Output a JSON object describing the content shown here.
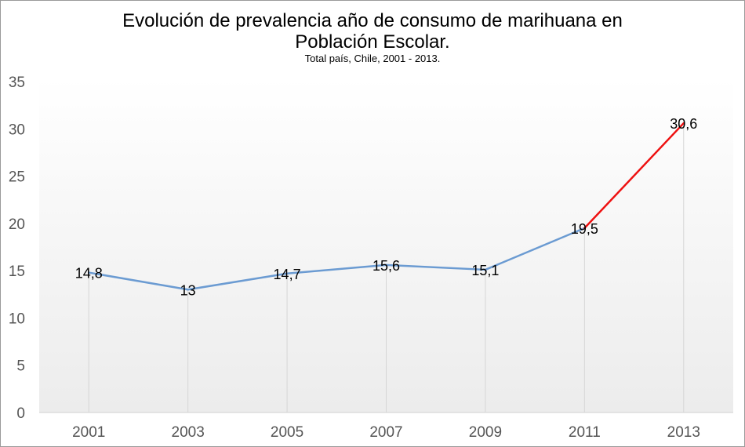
{
  "chart_data": {
    "type": "line",
    "title_line1": "Evolución de prevalencia año de consumo de marihuana en",
    "title_line2": "Población Escolar.",
    "subtitle": "Total país,  Chile, 2001 - 2013.",
    "categories": [
      "2001",
      "2003",
      "2005",
      "2007",
      "2009",
      "2011",
      "2013"
    ],
    "values": [
      14.8,
      13,
      14.7,
      15.6,
      15.1,
      19.5,
      30.6
    ],
    "data_labels": [
      "14,8",
      "13",
      "14,7",
      "15,6",
      "15,1",
      "19,5",
      "30,6"
    ],
    "ylim": [
      0,
      35
    ],
    "yticks": [
      0,
      5,
      10,
      15,
      20,
      25,
      30,
      35
    ],
    "xlabel": "",
    "ylabel": "",
    "line_color": "#6b9bd2",
    "highlight_color": "#ee1111",
    "highlight_last_segment": true,
    "legend": "none"
  }
}
